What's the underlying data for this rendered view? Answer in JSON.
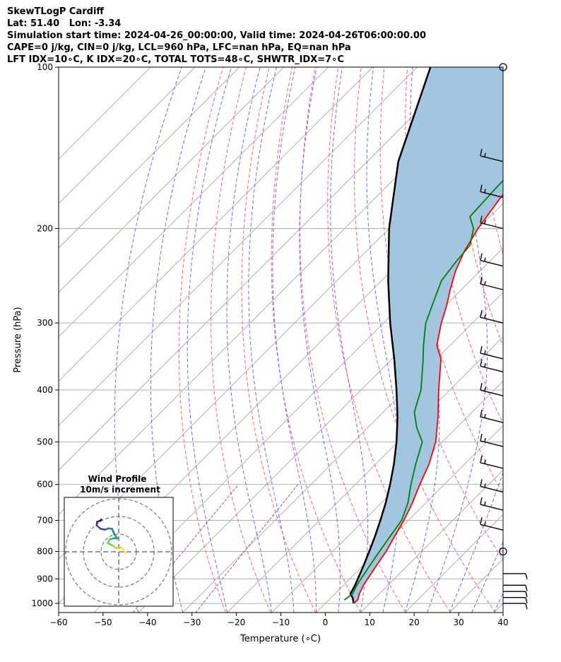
{
  "header": {
    "title": "SkewTLogP Cardiff",
    "location": "Lat: 51.40   Lon: -3.34",
    "times": "Simulation start time: 2024-04-26_00:00:00, Valid time: 2024-04-26T06:00:00.00",
    "params": "CAPE=0 j/kg, CIN=0 j/kg, LCL=960 hPa, LFC=nan hPa, EQ=nan hPa",
    "indices": "LFT IDX=10∘C, K IDX=20∘C, TOTAL TOTS=48∘C, SHWTR_IDX=7∘C"
  },
  "chart_data": {
    "type": "skewt",
    "xlabel": "Temperature (∘C)",
    "ylabel": "Pressure (hPa)",
    "xlim": [
      -60,
      40
    ],
    "ylim": [
      1040,
      100
    ],
    "x_ticks": [
      -60,
      -50,
      -40,
      -30,
      -20,
      -10,
      0,
      10,
      20,
      30,
      40
    ],
    "y_ticks": [
      100,
      200,
      300,
      400,
      500,
      600,
      700,
      800,
      900,
      1000
    ],
    "grid": true,
    "colors": {
      "temperature": "#ff0000",
      "dewpoint": "#008000",
      "parcel": "#000000",
      "shading": "#a3c6e0",
      "dry_adiabats": "#ff6666",
      "moist_adiabats": "#6b6bf0",
      "mixing_ratio": "#9b59b6"
    },
    "series": [
      {
        "key": "temperature",
        "pressure": [
          1000,
          985,
          960,
          925,
          900,
          850,
          800,
          750,
          700,
          650,
          600,
          550,
          500,
          450,
          400,
          350,
          330,
          300,
          280,
          260,
          240,
          220,
          200,
          180,
          160,
          140,
          120,
          100
        ],
        "values": [
          6.4,
          6.5,
          5.5,
          4.5,
          4.0,
          3.0,
          2.0,
          0.5,
          -1.0,
          -3.0,
          -5.5,
          -8.0,
          -11.5,
          -16.5,
          -22.5,
          -29.0,
          -33.0,
          -37.0,
          -39.5,
          -42.5,
          -45.5,
          -48.0,
          -50.0,
          -51.5,
          -53.0,
          -54.5,
          -56.5,
          -59.0
        ]
      },
      {
        "key": "dewpoint",
        "pressure": [
          985,
          960,
          925,
          900,
          850,
          800,
          750,
          700,
          650,
          600,
          550,
          500,
          470,
          440,
          400,
          350,
          330,
          300,
          270,
          250,
          230,
          215,
          200,
          190,
          170,
          150,
          120,
          100
        ],
        "values": [
          3.5,
          4.0,
          3.0,
          2.5,
          1.5,
          0.5,
          -0.5,
          -1.5,
          -4.0,
          -7.5,
          -11.0,
          -14.5,
          -19.0,
          -23.0,
          -26.5,
          -33.0,
          -36.0,
          -40.5,
          -44.0,
          -46.5,
          -47.5,
          -48.0,
          -51.0,
          -54.5,
          -55.0,
          -55.5,
          -56.5,
          -58.0
        ]
      },
      {
        "key": "parcel",
        "pressure": [
          1000,
          975,
          960,
          925,
          900,
          850,
          800,
          750,
          700,
          650,
          600,
          550,
          500,
          450,
          400,
          350,
          300,
          250,
          200,
          150,
          100
        ],
        "values": [
          6.4,
          4.8,
          3.5,
          2.6,
          1.8,
          0.1,
          -1.8,
          -3.9,
          -6.3,
          -9.0,
          -12.2,
          -15.9,
          -20.3,
          -25.6,
          -32.0,
          -39.5,
          -48.5,
          -58.5,
          -70.0,
          -83.0,
          -97.0
        ]
      }
    ],
    "wind_barbs_pressure": [
      100,
      150,
      175,
      200,
      235,
      260,
      300,
      350,
      370,
      410,
      460,
      510,
      560,
      620,
      670,
      730,
      800,
      880,
      925,
      950,
      975,
      1000
    ],
    "dry_adiabats_theta_K": [
      250,
      260,
      270,
      280,
      290,
      300,
      310,
      320,
      330,
      340,
      350,
      360,
      370,
      380,
      390,
      400,
      410,
      420,
      430
    ],
    "moist_adiabats_start_C": [
      -40,
      -30,
      -20,
      -10,
      -5,
      0,
      5,
      10,
      15,
      20,
      25,
      30,
      35,
      40,
      45
    ],
    "mixing_ratio_g_kg": [
      0.4,
      0.1
    ],
    "inset": {
      "title": "Wind Profile",
      "subtitle": "10m/s increment",
      "hodograph": [
        [
          1.5,
          0.3
        ],
        [
          1.0,
          -0.5
        ],
        [
          0.5,
          -1.0
        ],
        [
          -0.5,
          -0.8
        ],
        [
          -1.5,
          -1.5
        ],
        [
          -2.5,
          -2.0
        ],
        [
          -2.0,
          -2.8
        ],
        [
          -1.0,
          -3.1
        ],
        [
          -0.3,
          -3.0
        ],
        [
          -1.0,
          -4.0
        ],
        [
          -1.5,
          -5.2
        ],
        [
          -2.4,
          -5.3
        ],
        [
          -3.1,
          -5.0
        ],
        [
          -4.1,
          -5.2
        ],
        [
          -5.0,
          -6.0
        ],
        [
          -4.9,
          -6.8
        ],
        [
          -4.3,
          -7.0
        ],
        [
          -3.9,
          -7.3
        ]
      ]
    }
  }
}
